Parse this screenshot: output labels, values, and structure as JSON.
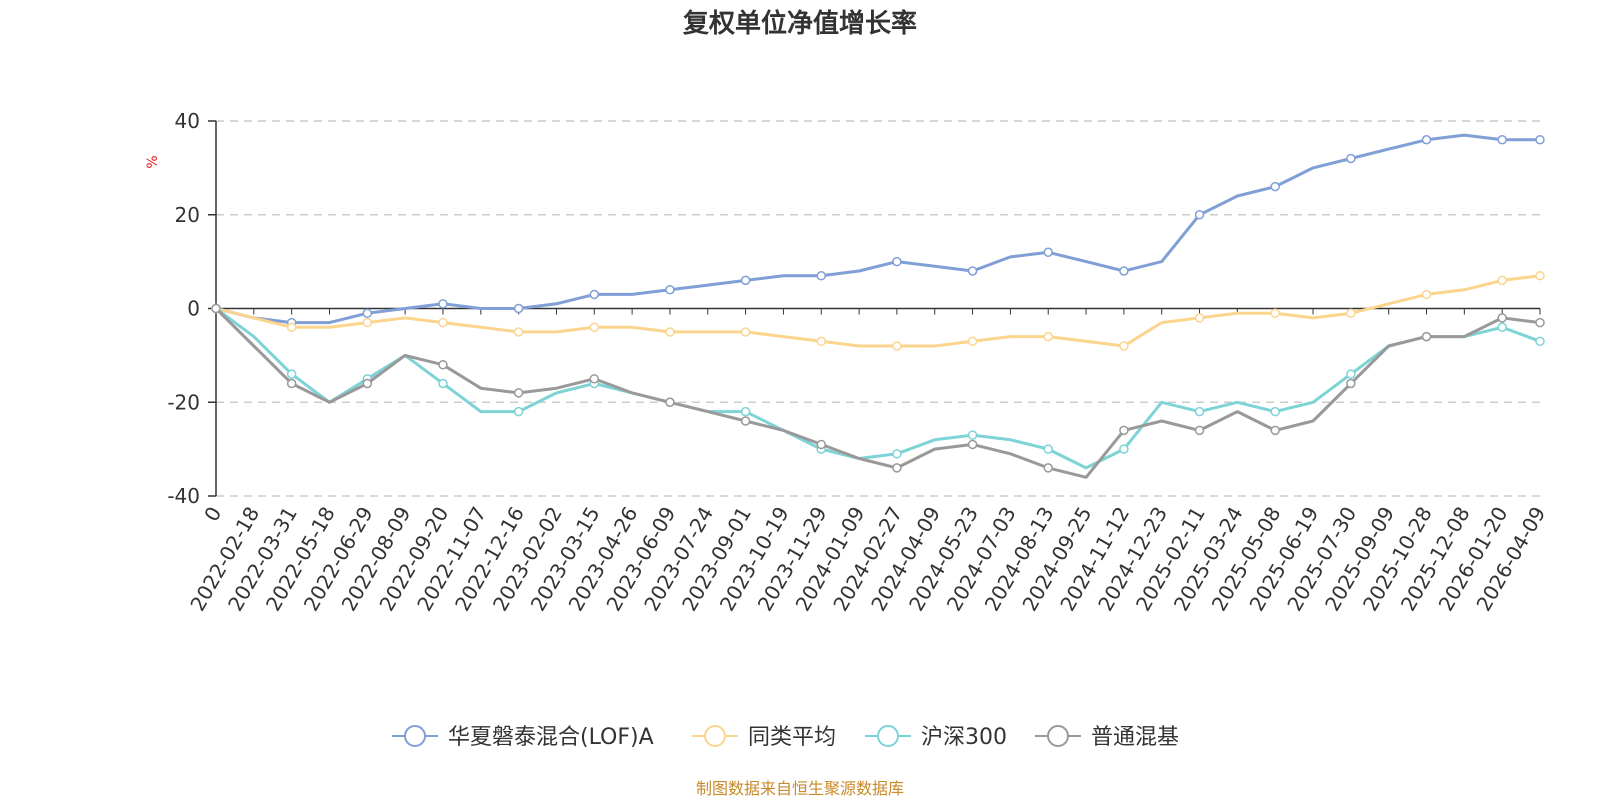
{
  "chart_data": {
    "type": "line",
    "title": "复权单位净值增长率",
    "ylabel": "%",
    "xlabel": "",
    "ylim": [
      -40,
      40
    ],
    "yticks": [
      40,
      20,
      0,
      -20,
      -40
    ],
    "grid": true,
    "legend_position": "bottom",
    "categories": [
      "0",
      "2022-02-18",
      "2022-03-31",
      "2022-05-18",
      "2022-06-29",
      "2022-08-09",
      "2022-09-20",
      "2022-11-07",
      "2022-12-16",
      "2023-02-02",
      "2023-03-15",
      "2023-04-26",
      "2023-06-09",
      "2023-07-24",
      "2023-09-01",
      "2023-10-19",
      "2023-11-29",
      "2024-01-09",
      "2024-02-27",
      "2024-04-09",
      "2024-05-23",
      "2024-07-03",
      "2024-08-13",
      "2024-09-25",
      "2024-11-12",
      "2024-12-23",
      "2025-02-11",
      "2025-03-24",
      "2025-05-08",
      "2025-06-19",
      "2025-07-30",
      "2025-09-09",
      "2025-10-28",
      "2025-12-08",
      "2026-01-20",
      "2026-04-09"
    ],
    "series": [
      {
        "name": "华夏磐泰混合(LOF)A",
        "color": "#7f9fd6",
        "values": [
          0,
          -2,
          -3,
          -3,
          -1,
          0,
          1,
          0,
          0,
          1,
          3,
          3,
          4,
          5,
          6,
          7,
          7,
          8,
          10,
          9,
          8,
          11,
          12,
          10,
          8,
          10,
          20,
          24,
          26,
          30,
          32,
          34,
          36,
          37,
          36,
          36
        ]
      },
      {
        "name": "同类平均",
        "color": "#fbd58e",
        "values": [
          0,
          -2,
          -4,
          -4,
          -3,
          -2,
          -3,
          -4,
          -5,
          -5,
          -4,
          -4,
          -5,
          -5,
          -5,
          -6,
          -7,
          -8,
          -8,
          -8,
          -7,
          -6,
          -6,
          -7,
          -8,
          -3,
          -2,
          -1,
          -1,
          -2,
          -1,
          1,
          3,
          4,
          6,
          7
        ]
      },
      {
        "name": "沪深300",
        "color": "#7dd3d6",
        "values": [
          0,
          -6,
          -14,
          -20,
          -15,
          -10,
          -16,
          -22,
          -22,
          -18,
          -16,
          -18,
          -20,
          -22,
          -22,
          -26,
          -30,
          -32,
          -31,
          -28,
          -27,
          -28,
          -30,
          -34,
          -30,
          -20,
          -22,
          -20,
          -22,
          -20,
          -14,
          -8,
          -6,
          -6,
          -4,
          -7
        ]
      },
      {
        "name": "普通混基",
        "color": "#999999",
        "values": [
          0,
          -8,
          -16,
          -20,
          -16,
          -10,
          -12,
          -17,
          -18,
          -17,
          -15,
          -18,
          -20,
          -22,
          -24,
          -26,
          -29,
          -32,
          -34,
          -30,
          -29,
          -31,
          -34,
          -36,
          -26,
          -24,
          -26,
          -22,
          -26,
          -24,
          -16,
          -8,
          -6,
          -6,
          -2,
          -3
        ]
      }
    ]
  },
  "source_note": "制图数据来自恒生聚源数据库"
}
